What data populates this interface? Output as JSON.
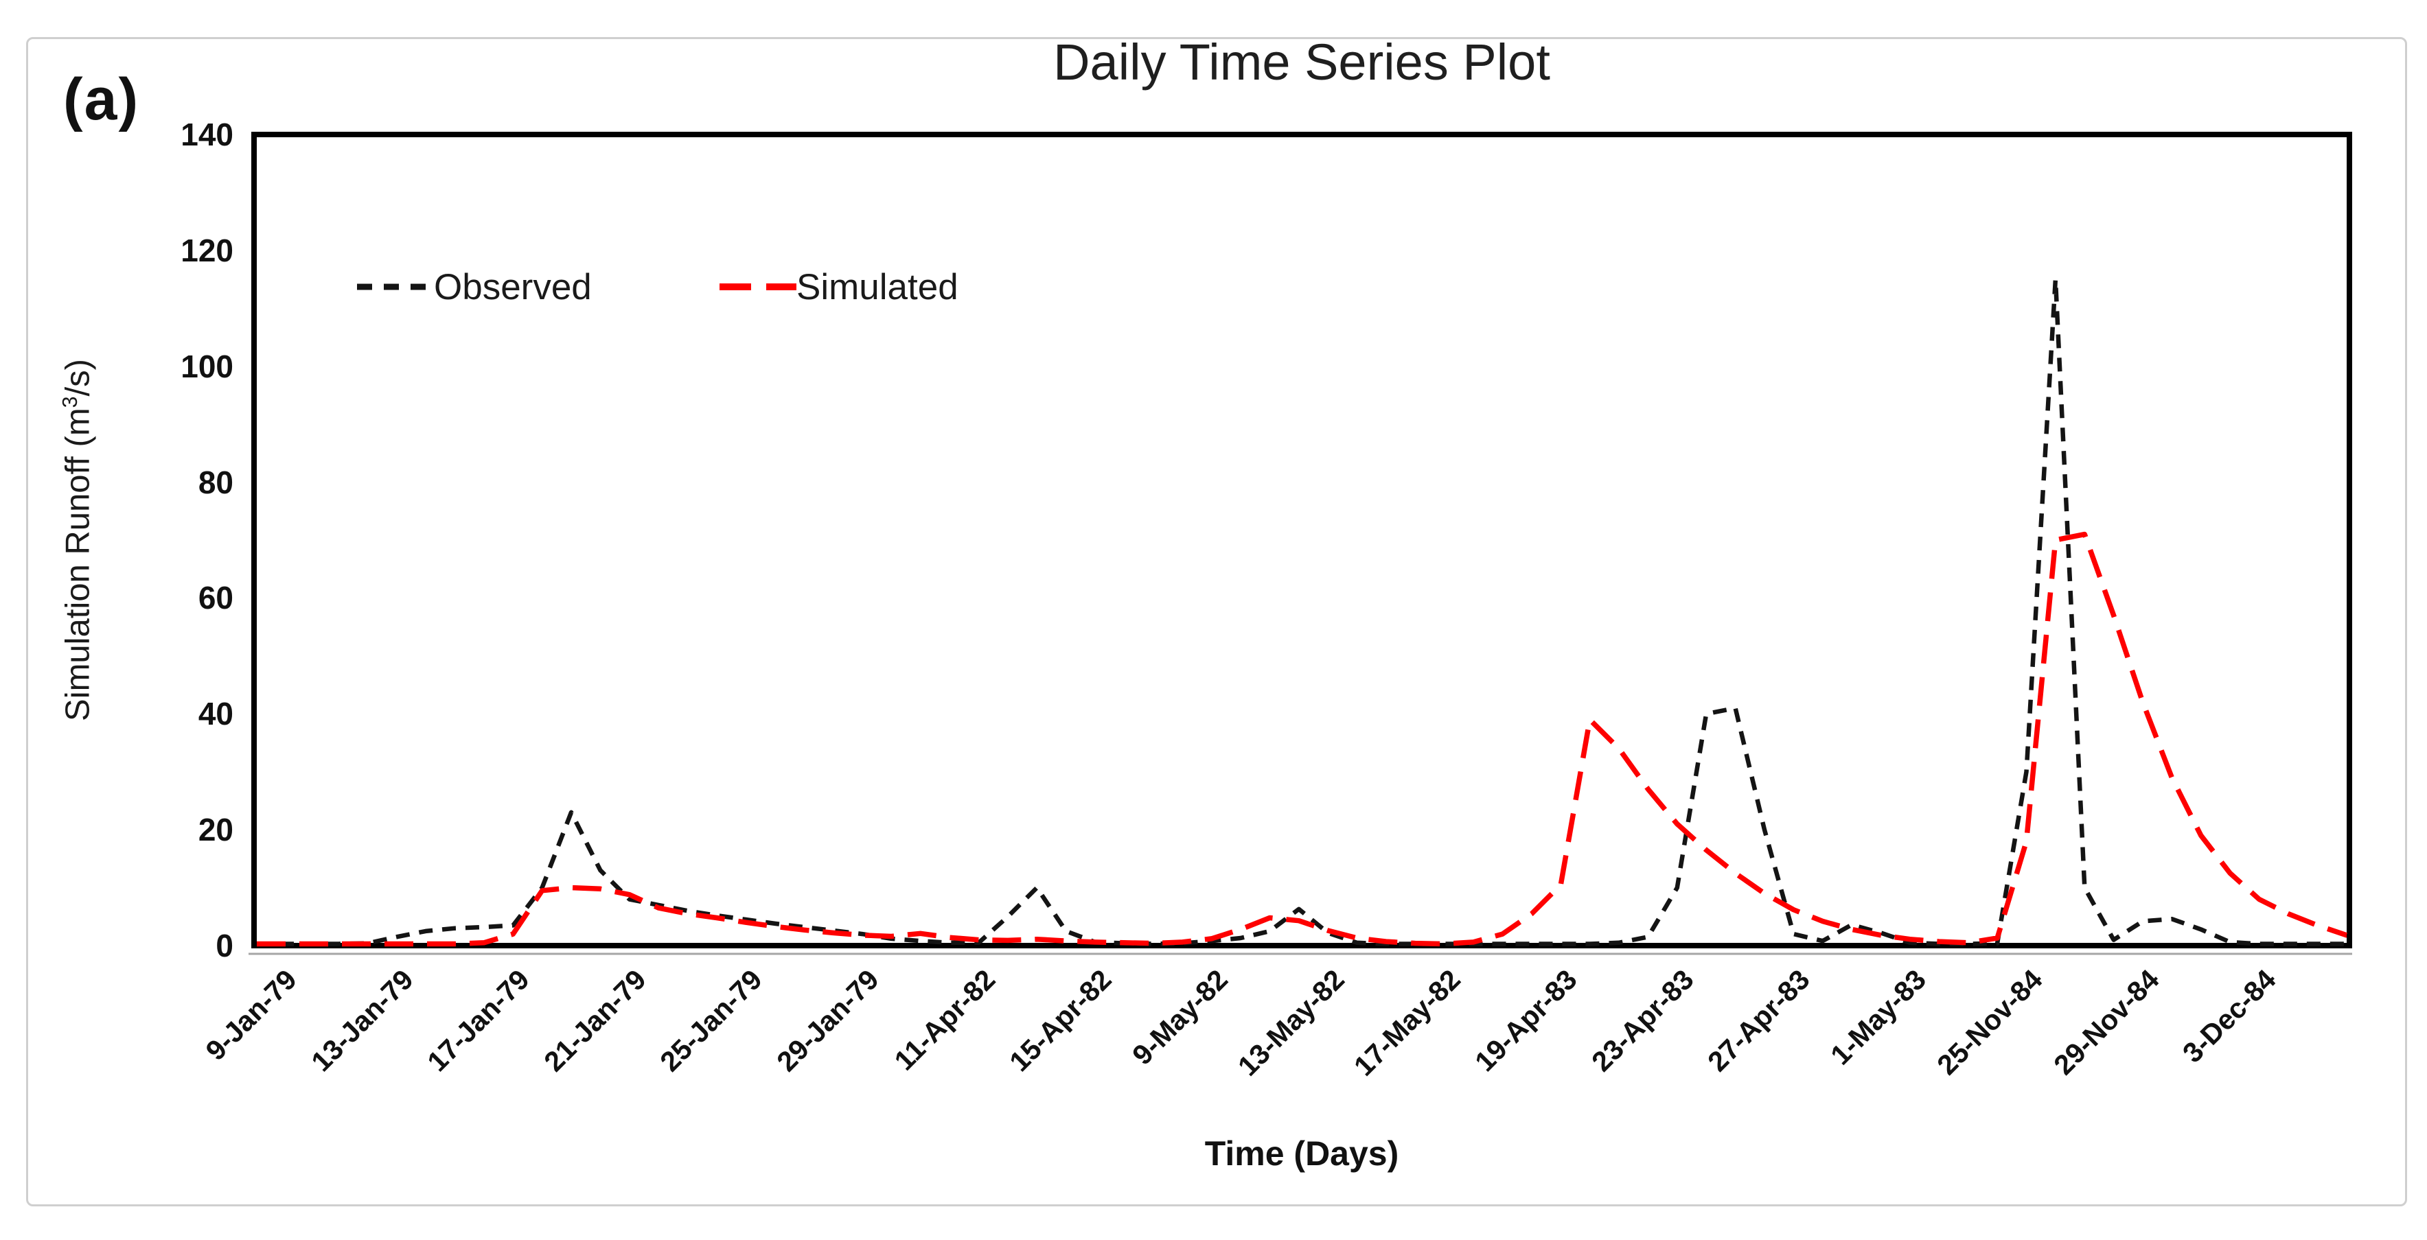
{
  "figure_label": "(a)",
  "title": "Daily Time Series Plot",
  "legend": {
    "items": [
      {
        "label": "Observed",
        "color": "#141414",
        "dash": "short"
      },
      {
        "label": "Simulated",
        "color": "#fe0000",
        "dash": "long"
      }
    ]
  },
  "y_axis": {
    "title_main": "Simulation Runoff (m",
    "title_sup": "3",
    "title_end": "/s)",
    "tick_values": [
      0,
      20,
      40,
      60,
      80,
      100,
      120,
      140
    ]
  },
  "x_axis": {
    "title": "Time (Days)"
  },
  "chart_data": {
    "type": "line",
    "title": "Daily Time Series Plot",
    "xlabel": "Time (Days)",
    "ylabel": "Simulation Runoff (m3/s)",
    "ylim": [
      0,
      140
    ],
    "y_ticks": [
      0,
      20,
      40,
      60,
      80,
      100,
      120,
      140
    ],
    "grid": false,
    "legend_position": "top-left-inside",
    "n_points": 72,
    "x_tick_positions": [
      0,
      4,
      8,
      12,
      16,
      20,
      24,
      28,
      32,
      36,
      40,
      44,
      48,
      52,
      56,
      60,
      64,
      68
    ],
    "x_tick_labels": [
      "9-Jan-79",
      "13-Jan-79",
      "17-Jan-79",
      "21-Jan-79",
      "25-Jan-79",
      "29-Jan-79",
      "11-Apr-82",
      "15-Apr-82",
      "9-May-82",
      "13-May-82",
      "17-May-82",
      "19-Apr-83",
      "23-Apr-83",
      "27-Apr-83",
      "1-May-83",
      "25-Nov-84",
      "29-Nov-84",
      "3-Dec-84"
    ],
    "series": [
      {
        "name": "Observed",
        "color": "#141414",
        "dash": "short",
        "values": [
          0.3,
          0.3,
          0.3,
          0.4,
          1.5,
          2.5,
          3.0,
          3.2,
          3.5,
          10,
          23,
          13,
          8,
          7,
          6,
          5.2,
          4.5,
          3.8,
          3.2,
          2.6,
          2.0,
          1.2,
          0.8,
          0.5,
          0.5,
          5,
          10,
          2.5,
          0.6,
          0.4,
          0.3,
          0.4,
          0.8,
          1.3,
          2.5,
          6.3,
          2.2,
          0.5,
          0.3,
          0.3,
          0.3,
          0.3,
          0.3,
          0.3,
          0.3,
          0.3,
          0.5,
          1.5,
          10,
          40,
          41,
          20,
          2,
          0.8,
          3.6,
          2.2,
          0.5,
          0.3,
          0.3,
          0.4,
          30,
          115,
          10,
          1,
          4.2,
          4.6,
          2.8,
          0.6,
          0.3,
          0.3,
          0.3,
          0.3
        ]
      },
      {
        "name": "Simulated",
        "color": "#fe0000",
        "dash": "long",
        "values": [
          0.3,
          0.3,
          0.3,
          0.3,
          0.3,
          0.3,
          0.3,
          0.5,
          2,
          9.5,
          10,
          9.8,
          8.8,
          6.5,
          5.5,
          4.8,
          4.0,
          3.3,
          2.7,
          2.2,
          1.8,
          1.6,
          2.1,
          1.4,
          1.0,
          0.9,
          1.1,
          0.8,
          0.6,
          0.5,
          0.4,
          0.6,
          1.2,
          2.8,
          4.8,
          4.3,
          2.6,
          1.3,
          0.7,
          0.4,
          0.3,
          0.6,
          2.0,
          5.5,
          10.5,
          39,
          34,
          27,
          21,
          16.5,
          12.5,
          9,
          6.2,
          4.2,
          2.8,
          1.8,
          1.1,
          0.7,
          0.5,
          1.3,
          18,
          70,
          71,
          57,
          42,
          29,
          19,
          12.5,
          8,
          5.5,
          3.5,
          1.8
        ]
      }
    ]
  }
}
